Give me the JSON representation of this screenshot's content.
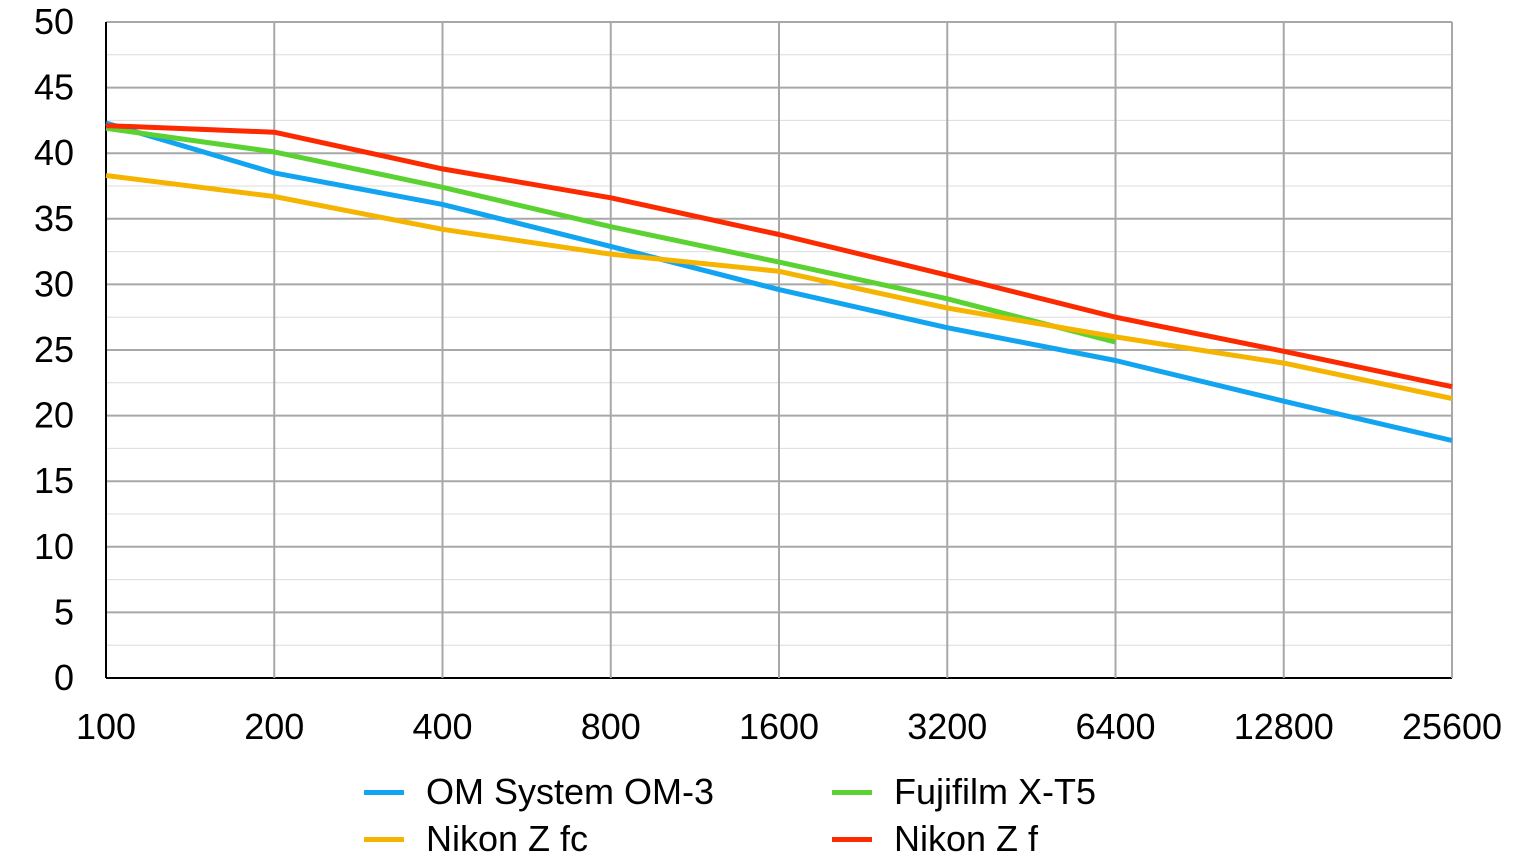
{
  "chart_data": {
    "type": "line",
    "title": "",
    "xlabel": "",
    "ylabel": "",
    "x_scale": "log2",
    "categories": [
      "100",
      "200",
      "400",
      "800",
      "1600",
      "3200",
      "6400",
      "12800",
      "25600"
    ],
    "ylim": [
      0,
      50
    ],
    "y_ticks": [
      "0",
      "5",
      "10",
      "15",
      "20",
      "25",
      "30",
      "35",
      "40",
      "45",
      "50"
    ],
    "grid": true,
    "legend_position": "bottom",
    "series": [
      {
        "name": "OM System OM-3",
        "color": "#12a4f0",
        "values": [
          42.3,
          38.5,
          36.1,
          32.9,
          29.6,
          26.7,
          24.2,
          21.1,
          18.1
        ]
      },
      {
        "name": "Fujifilm X-T5",
        "color": "#5ad232",
        "values": [
          41.9,
          40.1,
          37.4,
          34.4,
          31.7,
          28.9,
          25.6,
          null,
          null
        ]
      },
      {
        "name": "Nikon Z fc",
        "color": "#f5b400",
        "values": [
          38.3,
          36.7,
          34.2,
          32.3,
          31.0,
          28.2,
          26.0,
          24.0,
          21.3
        ]
      },
      {
        "name": "Nikon Z f",
        "color": "#fb2a00",
        "values": [
          42.1,
          41.6,
          38.8,
          36.6,
          33.8,
          30.7,
          27.5,
          24.9,
          22.2
        ]
      }
    ]
  }
}
